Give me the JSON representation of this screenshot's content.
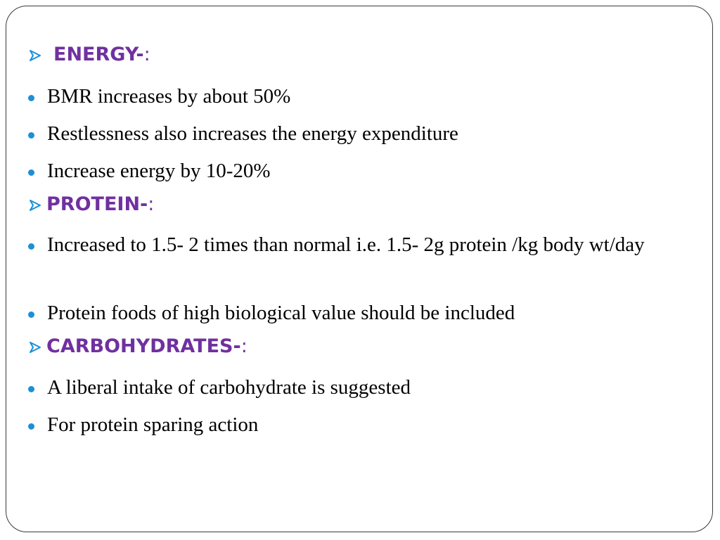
{
  "slide": {
    "accent_color": "#7030a0",
    "bullet_color": "#1c8fd6",
    "sections": [
      {
        "heading": "ENERGY-",
        "heading_suffix": ":",
        "items": [
          "BMR increases by about 50%",
          "Restlessness also increases the energy expenditure",
          "Increase energy by 10-20%"
        ]
      },
      {
        "heading": "PROTEIN-",
        "heading_suffix": ":",
        "items": [
          "Increased to 1.5- 2 times than normal i.e. 1.5- 2g protein /kg body wt/day",
          "Protein foods of high biological value should be included"
        ]
      },
      {
        "heading": "CARBOHYDRATES-",
        "heading_suffix": ":",
        "items": [
          "A liberal intake of carbohydrate is suggested",
          "For protein sparing action"
        ]
      }
    ]
  }
}
